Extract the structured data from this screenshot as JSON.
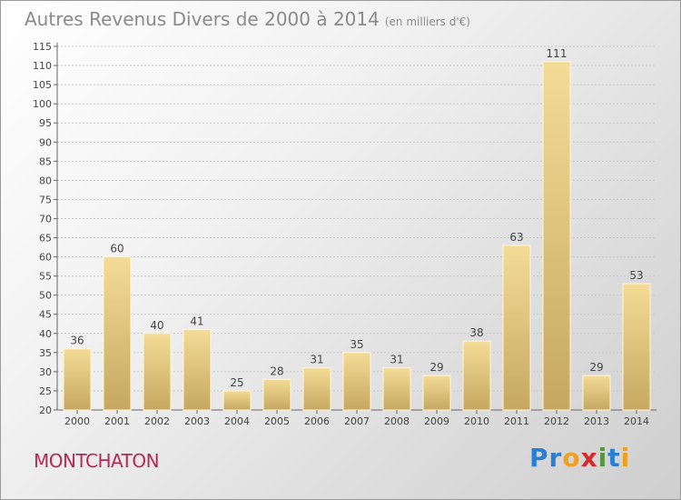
{
  "title": {
    "main": "Autres Revenus Divers de 2000 à 2014",
    "unit": "(en milliers d'€)"
  },
  "town": "MONTCHATON",
  "logo": {
    "letters": [
      "P",
      "r",
      "o",
      "x",
      "i",
      "t",
      "i"
    ],
    "colors": [
      "#2a7fd4",
      "#2a7fd4",
      "#f0a020",
      "#d42a2a",
      "#4aa02a",
      "#2a7fd4",
      "#f0a020"
    ]
  },
  "chart_data": {
    "type": "bar",
    "title": "Autres Revenus Divers de 2000 à 2014",
    "subtitle": "(en milliers d'€)",
    "categories": [
      "2000",
      "2001",
      "2002",
      "2003",
      "2004",
      "2005",
      "2006",
      "2007",
      "2008",
      "2009",
      "2010",
      "2011",
      "2012",
      "2013",
      "2014"
    ],
    "values": [
      36,
      60,
      40,
      41,
      25,
      28,
      31,
      35,
      31,
      29,
      38,
      63,
      111,
      29,
      53
    ],
    "ylim": [
      20,
      115
    ],
    "yticks": [
      20,
      25,
      30,
      35,
      40,
      45,
      50,
      55,
      60,
      65,
      70,
      75,
      80,
      85,
      90,
      95,
      100,
      105,
      110,
      115
    ],
    "grid": true,
    "bar_color": "#e8c878"
  }
}
